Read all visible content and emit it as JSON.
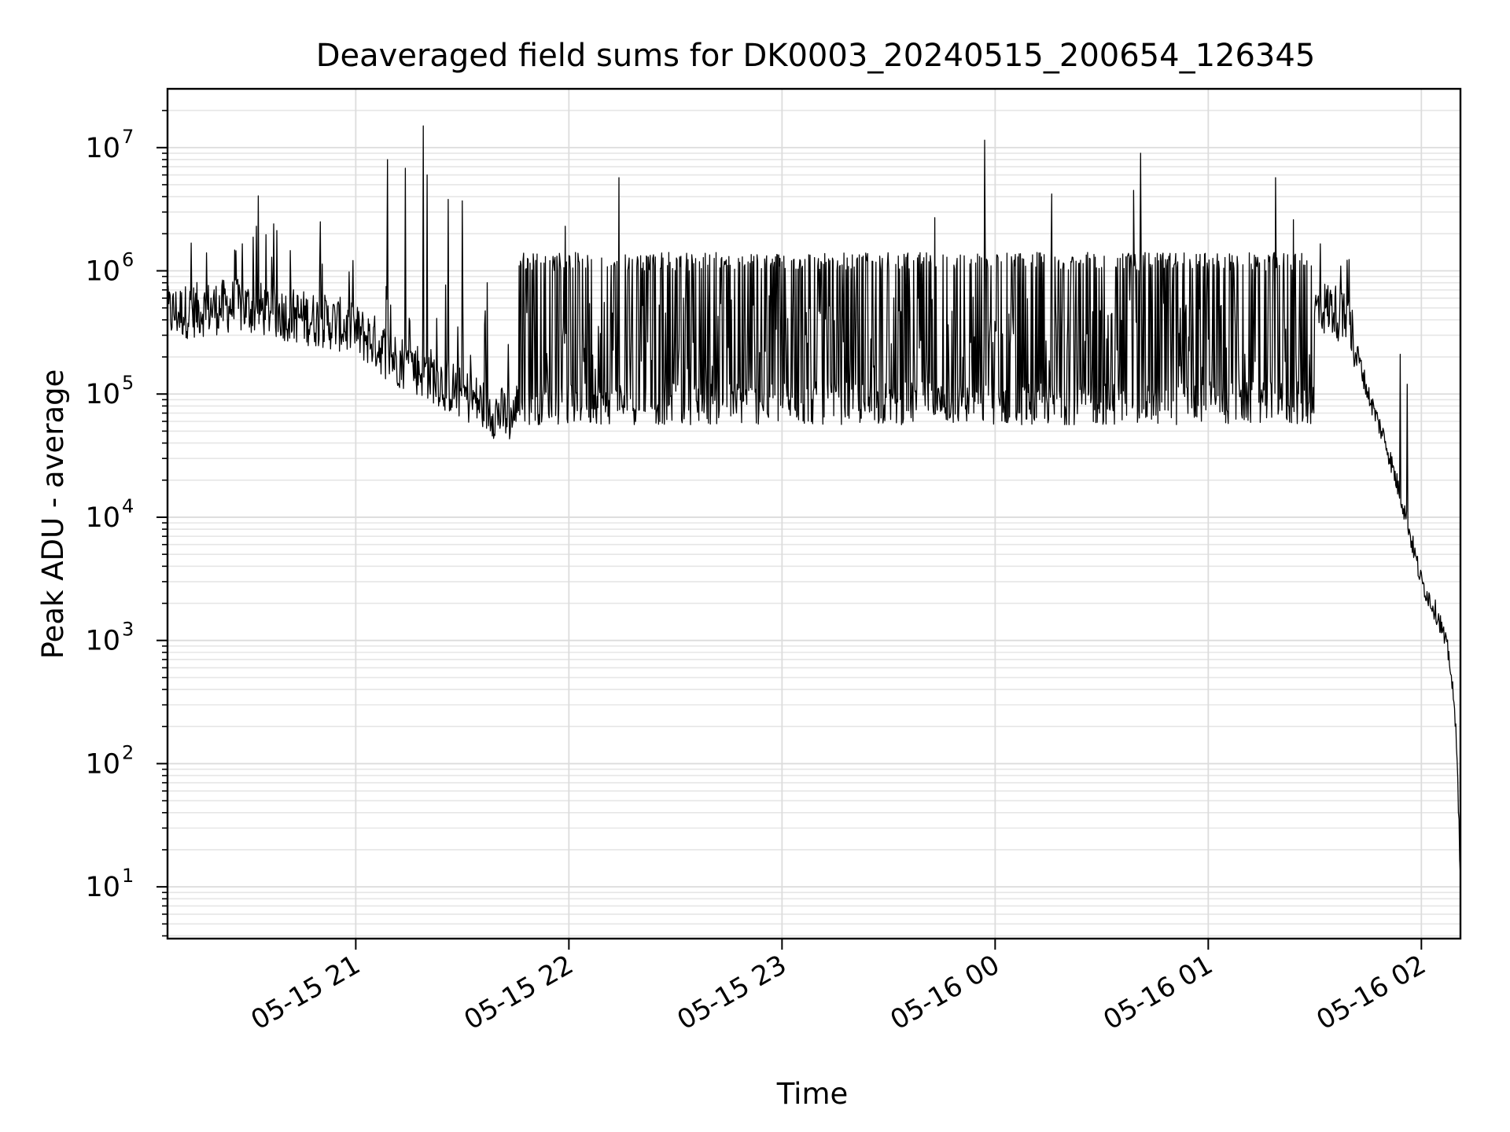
{
  "chart_data": {
    "type": "line",
    "title": "Deaveraged field sums for DK0003_20240515_200654_126345",
    "xlabel": "Time",
    "ylabel": "Peak ADU - average",
    "yscale": "log",
    "ylim": [
      3.8,
      30000000
    ],
    "xlim": [
      "2024-05-15 20:07",
      "2024-05-16 02:11"
    ],
    "grid": true,
    "line_color": "#000000",
    "x_ticks": [
      {
        "value": "2024-05-15 21:00",
        "label": "05-15 21"
      },
      {
        "value": "2024-05-15 22:00",
        "label": "05-15 22"
      },
      {
        "value": "2024-05-15 23:00",
        "label": "05-15 23"
      },
      {
        "value": "2024-05-16 00:00",
        "label": "05-16 00"
      },
      {
        "value": "2024-05-16 01:00",
        "label": "05-16 01"
      },
      {
        "value": "2024-05-16 02:00",
        "label": "05-16 02"
      }
    ],
    "y_ticks": [
      {
        "value": 10,
        "base": "10",
        "exp": "1"
      },
      {
        "value": 100,
        "base": "10",
        "exp": "2"
      },
      {
        "value": 1000,
        "base": "10",
        "exp": "3"
      },
      {
        "value": 10000,
        "base": "10",
        "exp": "4"
      },
      {
        "value": 100000,
        "base": "10",
        "exp": "5"
      },
      {
        "value": 1000000,
        "base": "10",
        "exp": "6"
      },
      {
        "value": 10000000,
        "base": "10",
        "exp": "7"
      }
    ],
    "series": [
      {
        "x": [
          "2024-05-15 20:07",
          "2024-05-15 20:15",
          "2024-05-15 20:25",
          "2024-05-15 20:35",
          "2024-05-15 20:45",
          "2024-05-15 20:55",
          "2024-05-15 21:00",
          "2024-05-15 21:05",
          "2024-05-15 21:10",
          "2024-05-15 21:20",
          "2024-05-15 21:30",
          "2024-05-15 21:40",
          "2024-05-15 21:50",
          "2024-05-15 22:00",
          "2024-05-15 22:20",
          "2024-05-15 22:40",
          "2024-05-15 23:00",
          "2024-05-15 23:30",
          "2024-05-16 00:00",
          "2024-05-16 00:30",
          "2024-05-16 01:00",
          "2024-05-16 01:20",
          "2024-05-16 01:30",
          "2024-05-16 01:35",
          "2024-05-16 01:40",
          "2024-05-16 01:45",
          "2024-05-16 01:50",
          "2024-05-16 01:55",
          "2024-05-16 02:00",
          "2024-05-16 02:05",
          "2024-05-16 02:08",
          "2024-05-16 02:10",
          "2024-05-16 02:11"
        ],
        "y": [
          450000,
          480000,
          520000,
          480000,
          420000,
          370000,
          320000,
          270000,
          200000,
          150000,
          100000,
          70000,
          60000,
          70000,
          120000,
          200000,
          250000,
          270000,
          280000,
          300000,
          320000,
          350000,
          500000,
          500000,
          350000,
          100000,
          40000,
          12000,
          3000,
          1500,
          700,
          150,
          10
        ],
        "noise": "heavy spikes throughout, most reaching about 1000000 between 05-15 21:50 and 05-16 01:30"
      }
    ],
    "spikes": [
      {
        "x": "2024-05-15 20:32",
        "y": 2300000
      },
      {
        "x": "2024-05-15 20:50",
        "y": 2500000
      },
      {
        "x": "2024-05-15 21:09",
        "y": 8000000
      },
      {
        "x": "2024-05-15 21:14",
        "y": 6800000
      },
      {
        "x": "2024-05-15 21:19",
        "y": 15000000
      },
      {
        "x": "2024-05-15 21:20",
        "y": 6000000
      },
      {
        "x": "2024-05-15 21:26",
        "y": 3800000
      },
      {
        "x": "2024-05-15 21:30",
        "y": 3700000
      },
      {
        "x": "2024-05-15 21:37",
        "y": 800000
      },
      {
        "x": "2024-05-15 21:59",
        "y": 2300000
      },
      {
        "x": "2024-05-15 22:14",
        "y": 5700000
      },
      {
        "x": "2024-05-15 23:43",
        "y": 2700000
      },
      {
        "x": "2024-05-15 23:57",
        "y": 11500000
      },
      {
        "x": "2024-05-16 00:16",
        "y": 4200000
      },
      {
        "x": "2024-05-16 00:39",
        "y": 4500000
      },
      {
        "x": "2024-05-16 00:41",
        "y": 9000000
      },
      {
        "x": "2024-05-16 01:19",
        "y": 5700000
      },
      {
        "x": "2024-05-16 01:24",
        "y": 2600000
      },
      {
        "x": "2024-05-16 01:54",
        "y": 210000
      },
      {
        "x": "2024-05-16 01:56",
        "y": 120000
      }
    ]
  }
}
